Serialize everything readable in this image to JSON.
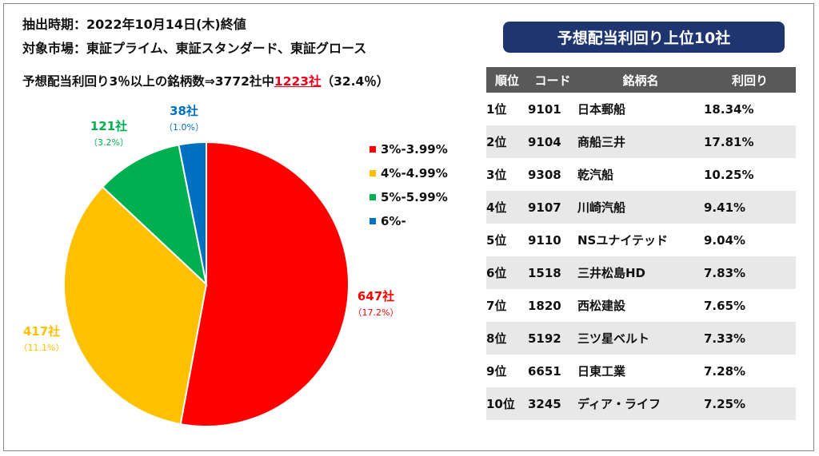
{
  "info": {
    "line1": "抽出時期：2022年10月14日(木)終値",
    "line2": "対象市場：東証プライム、東証スタンダード、東証グロース",
    "line3_pre": "予想配当利回り3％以上の銘柄数⇒3772社中",
    "line3_highlight": "1223社",
    "line3_post": "（32.4％）"
  },
  "chart_data": {
    "type": "pie",
    "categories": [
      "3%-3.99%",
      "4%-4.99%",
      "5%-5.99%",
      "6%-"
    ],
    "values": [
      647,
      417,
      121,
      38
    ],
    "value_labels": [
      "647社",
      "417社",
      "121社",
      "38社"
    ],
    "percent_labels": [
      "（17.2%）",
      "（11.1%）",
      "（3.2%）",
      "（1.0%）"
    ],
    "colors": [
      "#ff0000",
      "#ffc000",
      "#00b050",
      "#0070c0"
    ],
    "legend_position": "right"
  },
  "table": {
    "title": "予想配当利回り上位10社",
    "headers": [
      "順位",
      "コード",
      "銘柄名",
      "利回り"
    ],
    "rows": [
      [
        "1位",
        "9101",
        "日本郵船",
        "18.34%"
      ],
      [
        "2位",
        "9104",
        "商船三井",
        "17.81%"
      ],
      [
        "3位",
        "9308",
        "乾汽船",
        "10.25%"
      ],
      [
        "4位",
        "9107",
        "川崎汽船",
        "9.41%"
      ],
      [
        "5位",
        "9110",
        "NSユナイテッド",
        "9.04%"
      ],
      [
        "6位",
        "1518",
        "三井松島HD",
        "7.83%"
      ],
      [
        "7位",
        "1820",
        "西松建設",
        "7.65%"
      ],
      [
        "8位",
        "5192",
        "三ツ星ベルト",
        "7.33%"
      ],
      [
        "9位",
        "6651",
        "日東工業",
        "7.28%"
      ],
      [
        "10位",
        "3245",
        "ディア・ライフ",
        "7.25%"
      ]
    ]
  }
}
